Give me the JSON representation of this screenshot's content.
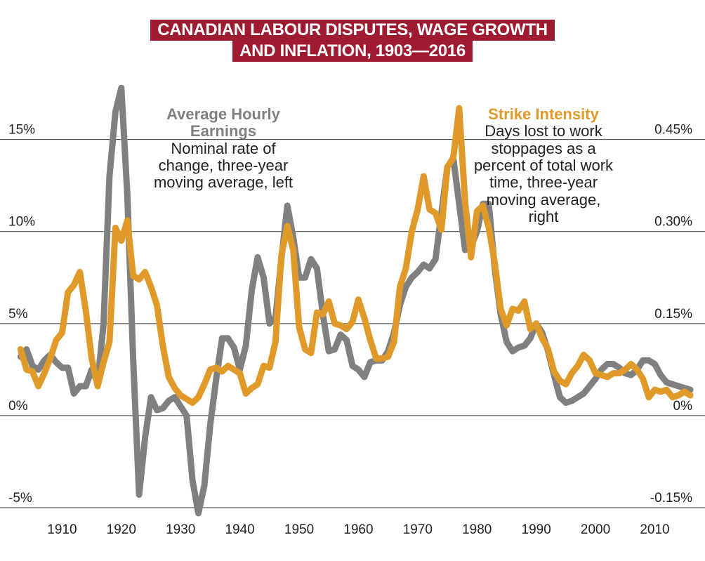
{
  "title": {
    "line1": "CANADIAN LABOUR DISPUTES, WAGE GROWTH",
    "line2": "AND INFLATION, 1903—2016"
  },
  "annotations": {
    "earnings": {
      "heading1": "Average Hourly",
      "heading2": "Earnings",
      "body": [
        "Nominal rate of",
        "change, three-year",
        "moving average, left"
      ]
    },
    "strike": {
      "heading": "Strike Intensity",
      "body": [
        "Days lost to work",
        "stoppages as a",
        "percent of total work",
        "time, three-year",
        "moving average,",
        "right"
      ]
    }
  },
  "colors": {
    "earnings": "#808080",
    "strike": "#e09a2a",
    "title_bg": "#9e1b32"
  },
  "chart_data": {
    "type": "line",
    "title": "CANADIAN LABOUR DISPUTES, WAGE GROWTH AND INFLATION, 1903—2016",
    "x_ticks": [
      "1910",
      "1920",
      "1930",
      "1940",
      "1950",
      "1960",
      "1970",
      "1980",
      "1990",
      "2000",
      "2010"
    ],
    "x_tick_values": [
      1910,
      1920,
      1930,
      1940,
      1950,
      1960,
      1970,
      1980,
      1990,
      2000,
      2010
    ],
    "xlim": [
      1900,
      2018
    ],
    "y_left": {
      "ticks": [
        "15%",
        "10%",
        "5%",
        "0%",
        "-5%"
      ],
      "tick_values": [
        15,
        10,
        5,
        0,
        -5
      ],
      "ylim": [
        -5,
        18
      ]
    },
    "y_right": {
      "ticks": [
        "0.45%",
        "0.30%",
        "0.15%",
        "0%",
        "-0.15%"
      ],
      "tick_values": [
        0.45,
        0.3,
        0.15,
        0,
        -0.15
      ],
      "ylim": [
        -0.15,
        0.54
      ]
    },
    "grid": "horizontal",
    "series": [
      {
        "name": "Average Hourly Earnings",
        "axis": "left",
        "points": [
          [
            1903,
            3.2
          ],
          [
            1904,
            3.6
          ],
          [
            1905,
            2.7
          ],
          [
            1906,
            2.5
          ],
          [
            1907,
            3.0
          ],
          [
            1908,
            3.3
          ],
          [
            1909,
            2.9
          ],
          [
            1910,
            2.6
          ],
          [
            1911,
            2.6
          ],
          [
            1912,
            1.2
          ],
          [
            1913,
            1.6
          ],
          [
            1914,
            1.6
          ],
          [
            1915,
            2.5
          ],
          [
            1916,
            1.8
          ],
          [
            1917,
            5.0
          ],
          [
            1918,
            13.0
          ],
          [
            1919,
            16.5
          ],
          [
            1920,
            17.8
          ],
          [
            1921,
            12.0
          ],
          [
            1922,
            3.0
          ],
          [
            1923,
            -4.3
          ],
          [
            1924,
            -1.2
          ],
          [
            1925,
            1.0
          ],
          [
            1926,
            0.3
          ],
          [
            1927,
            0.4
          ],
          [
            1928,
            0.8
          ],
          [
            1929,
            1.0
          ],
          [
            1930,
            0.5
          ],
          [
            1931,
            0.0
          ],
          [
            1932,
            -3.5
          ],
          [
            1933,
            -5.3
          ],
          [
            1934,
            -3.8
          ],
          [
            1935,
            -0.5
          ],
          [
            1936,
            2.0
          ],
          [
            1937,
            4.2
          ],
          [
            1938,
            4.2
          ],
          [
            1939,
            3.7
          ],
          [
            1940,
            2.5
          ],
          [
            1941,
            3.8
          ],
          [
            1942,
            6.8
          ],
          [
            1943,
            8.6
          ],
          [
            1944,
            7.5
          ],
          [
            1945,
            5.0
          ],
          [
            1946,
            5.3
          ],
          [
            1947,
            8.5
          ],
          [
            1948,
            11.4
          ],
          [
            1949,
            9.7
          ],
          [
            1950,
            7.5
          ],
          [
            1951,
            7.5
          ],
          [
            1952,
            8.5
          ],
          [
            1953,
            8.0
          ],
          [
            1954,
            5.5
          ],
          [
            1955,
            3.5
          ],
          [
            1956,
            3.6
          ],
          [
            1957,
            4.4
          ],
          [
            1958,
            4.1
          ],
          [
            1959,
            2.7
          ],
          [
            1960,
            2.5
          ],
          [
            1961,
            2.1
          ],
          [
            1962,
            2.9
          ],
          [
            1963,
            3.0
          ],
          [
            1964,
            3.0
          ],
          [
            1965,
            3.5
          ],
          [
            1966,
            4.5
          ],
          [
            1967,
            6.0
          ],
          [
            1968,
            7.0
          ],
          [
            1969,
            7.5
          ],
          [
            1970,
            7.8
          ],
          [
            1971,
            8.2
          ],
          [
            1972,
            8.0
          ],
          [
            1973,
            8.5
          ],
          [
            1974,
            11.0
          ],
          [
            1975,
            13.5
          ],
          [
            1976,
            14.0
          ],
          [
            1977,
            11.5
          ],
          [
            1978,
            9.0
          ],
          [
            1979,
            9.2
          ],
          [
            1980,
            10.0
          ],
          [
            1981,
            11.5
          ],
          [
            1982,
            11.5
          ],
          [
            1983,
            8.0
          ],
          [
            1984,
            5.5
          ],
          [
            1985,
            4.0
          ],
          [
            1986,
            3.5
          ],
          [
            1987,
            3.7
          ],
          [
            1988,
            3.8
          ],
          [
            1989,
            4.2
          ],
          [
            1990,
            5.0
          ],
          [
            1991,
            4.5
          ],
          [
            1992,
            3.5
          ],
          [
            1993,
            2.2
          ],
          [
            1994,
            1.0
          ],
          [
            1995,
            0.7
          ],
          [
            1996,
            0.8
          ],
          [
            1997,
            1.0
          ],
          [
            1998,
            1.2
          ],
          [
            1999,
            1.6
          ],
          [
            2000,
            2.0
          ],
          [
            2001,
            2.5
          ],
          [
            2002,
            2.8
          ],
          [
            2003,
            2.8
          ],
          [
            2004,
            2.6
          ],
          [
            2005,
            2.3
          ],
          [
            2006,
            2.2
          ],
          [
            2007,
            2.5
          ],
          [
            2008,
            3.0
          ],
          [
            2009,
            3.0
          ],
          [
            2010,
            2.8
          ],
          [
            2011,
            2.2
          ],
          [
            2012,
            1.8
          ],
          [
            2013,
            1.7
          ],
          [
            2014,
            1.6
          ],
          [
            2015,
            1.5
          ],
          [
            2016,
            1.4
          ]
        ]
      },
      {
        "name": "Strike Intensity",
        "axis": "right",
        "points": [
          [
            1903,
            0.108
          ],
          [
            1904,
            0.075
          ],
          [
            1905,
            0.072
          ],
          [
            1906,
            0.048
          ],
          [
            1907,
            0.069
          ],
          [
            1908,
            0.093
          ],
          [
            1909,
            0.123
          ],
          [
            1910,
            0.135
          ],
          [
            1911,
            0.201
          ],
          [
            1912,
            0.213
          ],
          [
            1913,
            0.234
          ],
          [
            1914,
            0.171
          ],
          [
            1915,
            0.093
          ],
          [
            1916,
            0.048
          ],
          [
            1917,
            0.087
          ],
          [
            1918,
            0.12
          ],
          [
            1919,
            0.306
          ],
          [
            1920,
            0.285
          ],
          [
            1921,
            0.318
          ],
          [
            1922,
            0.228
          ],
          [
            1923,
            0.222
          ],
          [
            1924,
            0.234
          ],
          [
            1925,
            0.21
          ],
          [
            1926,
            0.18
          ],
          [
            1927,
            0.114
          ],
          [
            1928,
            0.063
          ],
          [
            1929,
            0.045
          ],
          [
            1930,
            0.033
          ],
          [
            1931,
            0.027
          ],
          [
            1932,
            0.021
          ],
          [
            1933,
            0.03
          ],
          [
            1934,
            0.051
          ],
          [
            1935,
            0.075
          ],
          [
            1936,
            0.078
          ],
          [
            1937,
            0.072
          ],
          [
            1938,
            0.081
          ],
          [
            1939,
            0.075
          ],
          [
            1940,
            0.069
          ],
          [
            1941,
            0.036
          ],
          [
            1942,
            0.045
          ],
          [
            1943,
            0.051
          ],
          [
            1944,
            0.081
          ],
          [
            1945,
            0.078
          ],
          [
            1946,
            0.12
          ],
          [
            1947,
            0.261
          ],
          [
            1948,
            0.309
          ],
          [
            1949,
            0.27
          ],
          [
            1950,
            0.144
          ],
          [
            1951,
            0.108
          ],
          [
            1952,
            0.102
          ],
          [
            1953,
            0.168
          ],
          [
            1954,
            0.165
          ],
          [
            1955,
            0.186
          ],
          [
            1956,
            0.15
          ],
          [
            1957,
            0.147
          ],
          [
            1958,
            0.141
          ],
          [
            1959,
            0.153
          ],
          [
            1960,
            0.189
          ],
          [
            1961,
            0.159
          ],
          [
            1962,
            0.123
          ],
          [
            1963,
            0.093
          ],
          [
            1964,
            0.093
          ],
          [
            1965,
            0.096
          ],
          [
            1966,
            0.12
          ],
          [
            1967,
            0.21
          ],
          [
            1968,
            0.24
          ],
          [
            1969,
            0.3
          ],
          [
            1970,
            0.336
          ],
          [
            1971,
            0.39
          ],
          [
            1972,
            0.336
          ],
          [
            1973,
            0.33
          ],
          [
            1974,
            0.303
          ],
          [
            1975,
            0.405
          ],
          [
            1976,
            0.42
          ],
          [
            1977,
            0.501
          ],
          [
            1978,
            0.348
          ],
          [
            1979,
            0.258
          ],
          [
            1980,
            0.333
          ],
          [
            1981,
            0.342
          ],
          [
            1982,
            0.306
          ],
          [
            1983,
            0.249
          ],
          [
            1984,
            0.174
          ],
          [
            1985,
            0.147
          ],
          [
            1986,
            0.174
          ],
          [
            1987,
            0.171
          ],
          [
            1988,
            0.186
          ],
          [
            1989,
            0.141
          ],
          [
            1990,
            0.15
          ],
          [
            1991,
            0.126
          ],
          [
            1992,
            0.108
          ],
          [
            1993,
            0.072
          ],
          [
            1994,
            0.057
          ],
          [
            1995,
            0.051
          ],
          [
            1996,
            0.069
          ],
          [
            1997,
            0.081
          ],
          [
            1998,
            0.099
          ],
          [
            1999,
            0.09
          ],
          [
            2000,
            0.069
          ],
          [
            2001,
            0.066
          ],
          [
            2002,
            0.063
          ],
          [
            2003,
            0.069
          ],
          [
            2004,
            0.069
          ],
          [
            2005,
            0.075
          ],
          [
            2006,
            0.084
          ],
          [
            2007,
            0.075
          ],
          [
            2008,
            0.06
          ],
          [
            2009,
            0.03
          ],
          [
            2010,
            0.042
          ],
          [
            2011,
            0.039
          ],
          [
            2012,
            0.042
          ],
          [
            2013,
            0.03
          ],
          [
            2014,
            0.033
          ],
          [
            2015,
            0.039
          ],
          [
            2016,
            0.033
          ]
        ]
      }
    ]
  }
}
